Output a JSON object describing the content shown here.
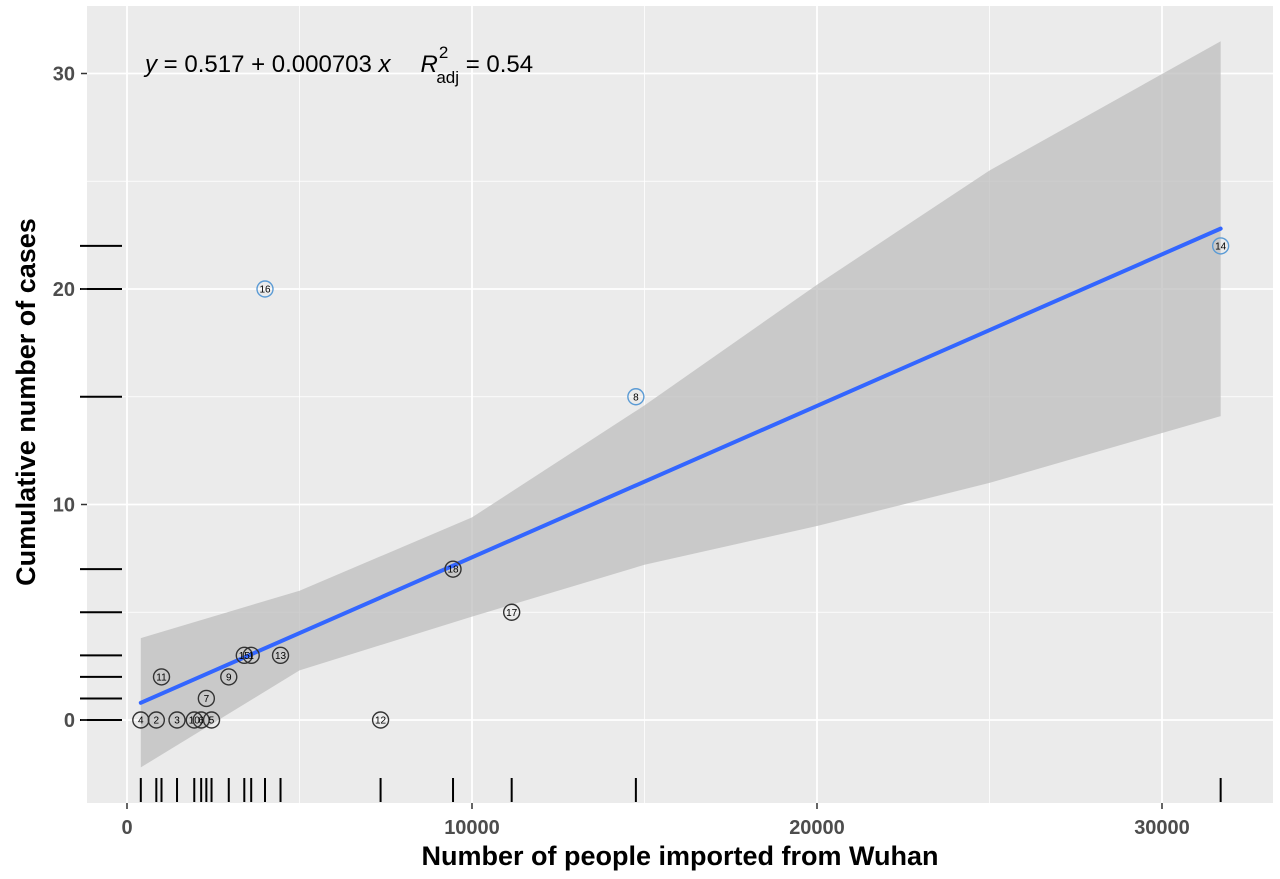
{
  "chart_data": {
    "type": "scatter",
    "title": "",
    "xlabel": "Number of people imported from Wuhan",
    "ylabel": "Cumulative number of cases",
    "xlim": [
      -1900,
      33000
    ],
    "ylim": [
      -3.5,
      33
    ],
    "x_ticks": [
      0,
      10000,
      20000,
      30000
    ],
    "x_tick_labels": [
      "0",
      "10000",
      "20000",
      "30000"
    ],
    "y_ticks": [
      0,
      10,
      20,
      30
    ],
    "y_tick_labels": [
      "0",
      "10",
      "20",
      "30"
    ],
    "grid": true,
    "background": "#ebebeb",
    "point_outline_color": "#333333",
    "highlight_outline_color": "#5b9bd5",
    "line_color": "#3366ff",
    "band_color": "#bebebe",
    "rug_color": "#000000",
    "equation": {
      "lhs": "y",
      "rhs": " = 0.517 + 0.000703 ",
      "var": "x",
      "r2_symbol": "R",
      "r2_sup": "2",
      "r2_sub": "adj",
      "r2_value": " = 0.54"
    },
    "fit": {
      "intercept": 0.517,
      "slope": 0.000703,
      "x_range": [
        400,
        31700
      ]
    },
    "confidence_band": {
      "x": [
        400,
        5000,
        10000,
        15000,
        20000,
        25000,
        31700
      ],
      "lower": [
        -2.2,
        2.3,
        4.8,
        7.2,
        9.0,
        11.0,
        14.1
      ],
      "upper": [
        3.8,
        6.0,
        9.4,
        14.6,
        20.2,
        25.5,
        31.5
      ]
    },
    "points": [
      {
        "id": "4",
        "x": 400,
        "y": 0
      },
      {
        "id": "2",
        "x": 850,
        "y": 0
      },
      {
        "id": "3",
        "x": 1450,
        "y": 0
      },
      {
        "id": "10",
        "x": 1950,
        "y": 0
      },
      {
        "id": "6",
        "x": 2150,
        "y": 0
      },
      {
        "id": "5",
        "x": 2450,
        "y": 0
      },
      {
        "id": "11",
        "x": 1000,
        "y": 2
      },
      {
        "id": "7",
        "x": 2300,
        "y": 1
      },
      {
        "id": "9",
        "x": 2950,
        "y": 2
      },
      {
        "id": "15",
        "x": 3400,
        "y": 3
      },
      {
        "id": "1",
        "x": 3600,
        "y": 3
      },
      {
        "id": "13",
        "x": 4450,
        "y": 3
      },
      {
        "id": "12",
        "x": 7350,
        "y": 0
      },
      {
        "id": "18",
        "x": 9450,
        "y": 7
      },
      {
        "id": "17",
        "x": 11150,
        "y": 5
      },
      {
        "id": "8",
        "x": 14750,
        "y": 15,
        "highlight": true
      },
      {
        "id": "16",
        "x": 4000,
        "y": 20,
        "highlight": true
      },
      {
        "id": "14",
        "x": 31700,
        "y": 22,
        "highlight": true
      }
    ],
    "rug_y": [
      0,
      1,
      2,
      3,
      5,
      7,
      15,
      20,
      22
    ],
    "rug_x": [
      400,
      850,
      1000,
      1450,
      1950,
      2150,
      2300,
      2450,
      2950,
      3400,
      3600,
      4000,
      4450,
      7350,
      9450,
      11150,
      14750,
      31700
    ]
  }
}
